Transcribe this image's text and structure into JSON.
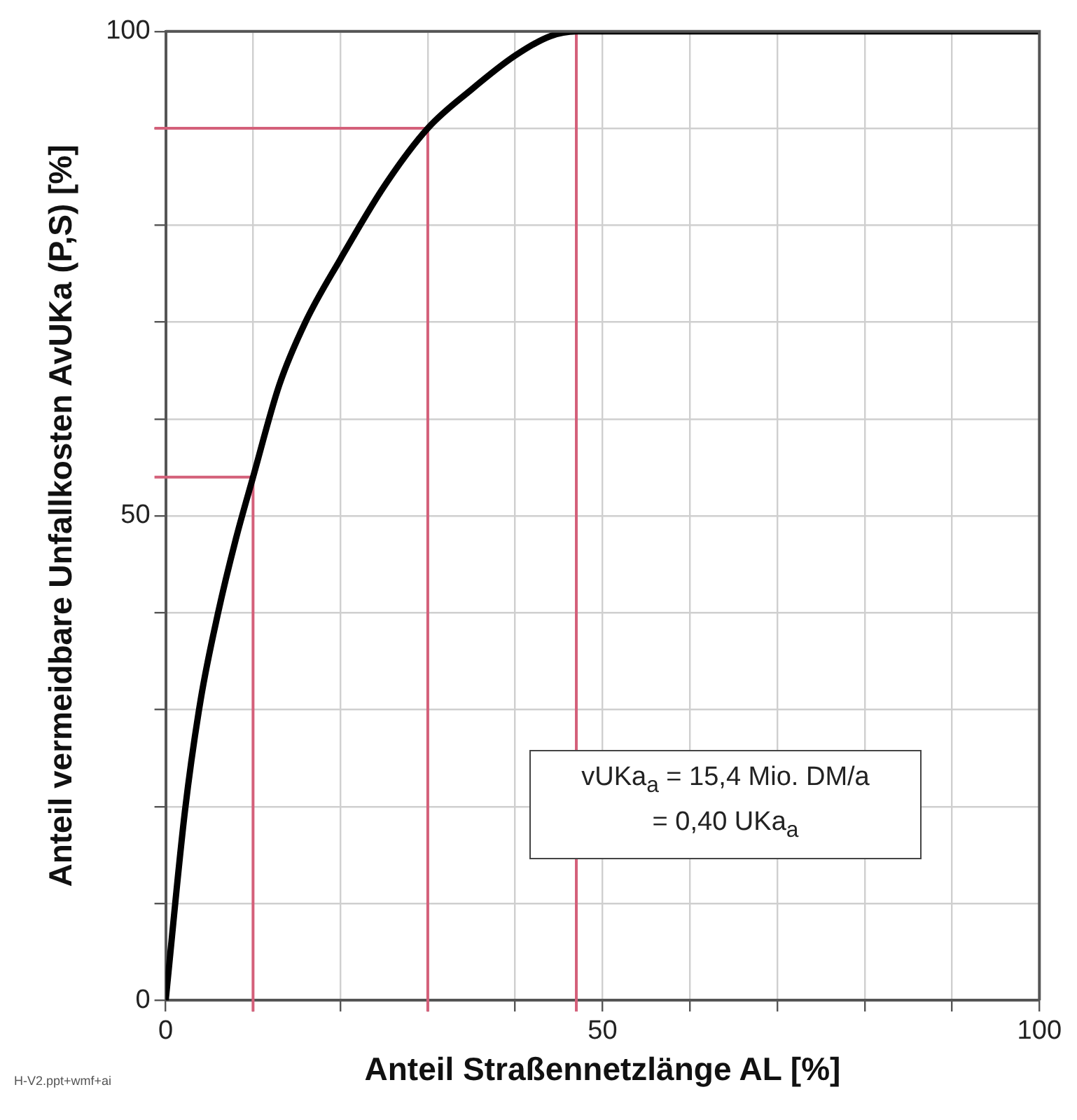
{
  "chart_data": {
    "type": "line",
    "xlabel": "Anteil Straßennetzlänge AL [%]",
    "ylabel": "Anteil vermeidbare Unfallkosten AvUKa (P,S) [%]",
    "x": [
      0,
      2.2,
      4,
      6,
      8,
      10,
      13,
      16,
      20,
      25,
      30,
      35,
      40,
      44,
      47,
      100
    ],
    "series": [
      {
        "color": "#000000",
        "values": [
          0,
          19.5,
          31,
          40,
          47.5,
          54,
          63.5,
          70,
          76.5,
          84,
          90,
          94,
          97.5,
          99.5,
          100,
          100
        ]
      }
    ],
    "xlim": [
      0,
      100
    ],
    "ylim": [
      0,
      100
    ],
    "xticks": [
      0,
      {
        "value": 10,
        "label": null
      },
      {
        "value": 20,
        "label": null
      },
      {
        "value": 30,
        "label": null
      },
      {
        "value": 40,
        "label": null
      },
      50,
      {
        "value": 60,
        "label": null
      },
      {
        "value": 70,
        "label": null
      },
      {
        "value": 80,
        "label": null
      },
      {
        "value": 90,
        "label": null
      },
      100
    ],
    "yticks": [
      0,
      {
        "value": 10,
        "label": null
      },
      {
        "value": 20,
        "label": null
      },
      {
        "value": 30,
        "label": null
      },
      {
        "value": 40,
        "label": null
      },
      50,
      {
        "value": 60,
        "label": null
      },
      {
        "value": 70,
        "label": null
      },
      {
        "value": 80,
        "label": null
      },
      {
        "value": 90,
        "label": null
      },
      100
    ],
    "grid": true,
    "ref_lines": [
      {
        "axis": "x",
        "value": 10,
        "color": "#d4607a"
      },
      {
        "axis": "x",
        "value": 30,
        "color": "#d4607a"
      },
      {
        "axis": "x",
        "value": 47,
        "color": "#d4607a"
      },
      {
        "axis": "y",
        "value": 54,
        "color": "#d4607a"
      },
      {
        "axis": "y",
        "value": 90,
        "color": "#d4607a"
      }
    ],
    "annotations": [
      "vUKa$_{a}$ = 15,4 Mio. DM/a\n= 0,40 UKa$_{a}$",
      "H-V2.ppt+wmf+ai"
    ]
  }
}
